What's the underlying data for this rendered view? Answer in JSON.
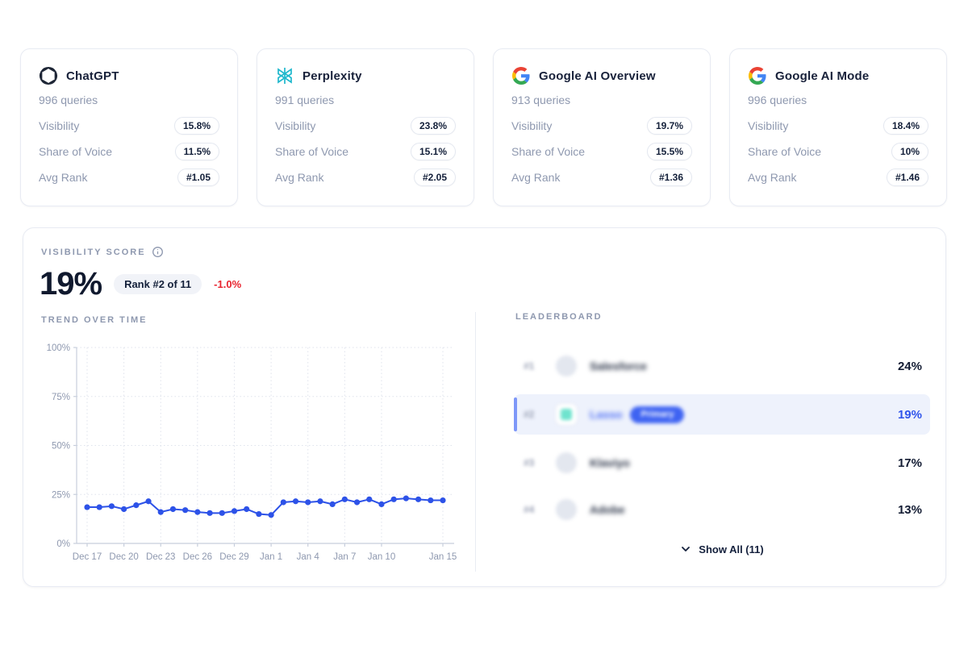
{
  "cards": [
    {
      "name": "ChatGPT",
      "icon": "chatgpt-logo",
      "queries": "996 queries",
      "metrics": {
        "visibility": "15.8%",
        "share_of_voice": "11.5%",
        "avg_rank": "#1.05"
      }
    },
    {
      "name": "Perplexity",
      "icon": "perplexity-logo",
      "queries": "991 queries",
      "metrics": {
        "visibility": "23.8%",
        "share_of_voice": "15.1%",
        "avg_rank": "#2.05"
      }
    },
    {
      "name": "Google AI Overview",
      "icon": "google-logo",
      "queries": "913 queries",
      "metrics": {
        "visibility": "19.7%",
        "share_of_voice": "15.5%",
        "avg_rank": "#1.36"
      }
    },
    {
      "name": "Google AI Mode",
      "icon": "google-logo",
      "queries": "996 queries",
      "metrics": {
        "visibility": "18.4%",
        "share_of_voice": "10%",
        "avg_rank": "#1.46"
      }
    }
  ],
  "card_metric_labels": {
    "visibility": "Visibility",
    "share_of_voice": "Share of Voice",
    "avg_rank": "Avg Rank"
  },
  "visibility_panel": {
    "title": "VISIBILITY SCORE",
    "score": "19%",
    "rank_badge": "Rank #2 of 11",
    "change": "-1.0%"
  },
  "chart_data": {
    "type": "line",
    "title": "TREND OVER TIME",
    "x": [
      "Dec 17",
      "Dec 18",
      "Dec 19",
      "Dec 20",
      "Dec 21",
      "Dec 22",
      "Dec 23",
      "Dec 24",
      "Dec 25",
      "Dec 26",
      "Dec 27",
      "Dec 28",
      "Dec 29",
      "Dec 30",
      "Dec 31",
      "Jan 1",
      "Jan 2",
      "Jan 3",
      "Jan 4",
      "Jan 5",
      "Jan 6",
      "Jan 7",
      "Jan 8",
      "Jan 9",
      "Jan 10",
      "Jan 11",
      "Jan 12",
      "Jan 13",
      "Jan 14",
      "Jan 15"
    ],
    "values": [
      18.5,
      18.5,
      19,
      17.5,
      19.5,
      21.5,
      16,
      17.5,
      17,
      16,
      15.5,
      15.5,
      16.5,
      17.5,
      15,
      14.5,
      21,
      21.5,
      21,
      21.5,
      20,
      22.5,
      21,
      22.5,
      20,
      22.5,
      23,
      22.5,
      22,
      22
    ],
    "xticks": [
      "Dec 17",
      "Dec 20",
      "Dec 23",
      "Dec 26",
      "Dec 29",
      "Jan 1",
      "Jan 4",
      "Jan 7",
      "Jan 10",
      "Jan 15"
    ],
    "yticks": [
      0,
      25,
      50,
      75,
      100
    ],
    "ytick_labels": [
      "0%",
      "25%",
      "50%",
      "75%",
      "100%"
    ],
    "ylim": [
      0,
      100
    ],
    "grid": true,
    "legend": "none",
    "line_color": "#2D52E8"
  },
  "leaderboard": {
    "title": "LEADERBOARD",
    "rows": [
      {
        "rank": "#1",
        "name": "Salesforce",
        "value": "24%",
        "blurred": true,
        "highlighted": false
      },
      {
        "rank": "#2",
        "name": "Lasso",
        "badge": "Primary",
        "value": "19%",
        "blurred": true,
        "highlighted": true
      },
      {
        "rank": "#3",
        "name": "Klaviyo",
        "value": "17%",
        "blurred": true,
        "highlighted": false
      },
      {
        "rank": "#4",
        "name": "Adobe",
        "value": "13%",
        "blurred": true,
        "highlighted": false
      }
    ],
    "show_all_label": "Show All (11)"
  },
  "colors": {
    "accent_blue": "#2D52E8",
    "negative_red": "#E8232E",
    "perplexity_teal": "#1FB8CD",
    "highlight_row_bg": "#EEF2FC",
    "muted_label": "#8E98AF",
    "dark_text": "#131C33",
    "border": "#E8EBF3"
  }
}
